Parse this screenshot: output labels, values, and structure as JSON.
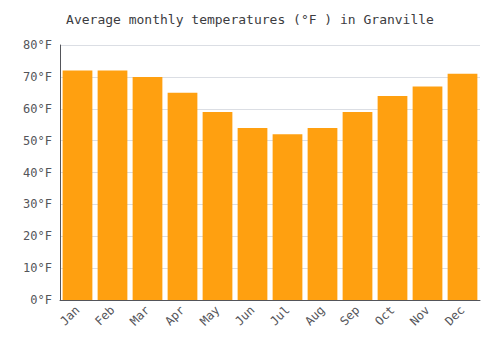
{
  "chart_data": {
    "type": "bar",
    "title": "Average monthly temperatures (°F ) in Granville",
    "categories": [
      "Jan",
      "Feb",
      "Mar",
      "Apr",
      "May",
      "Jun",
      "Jul",
      "Aug",
      "Sep",
      "Oct",
      "Nov",
      "Dec"
    ],
    "values": [
      72,
      72,
      70,
      65,
      59,
      54,
      52,
      54,
      59,
      64,
      67,
      71
    ],
    "color": "#FFA010",
    "ylim": [
      0,
      80
    ],
    "yticks": [
      {
        "value": 0,
        "label": "0°F"
      },
      {
        "value": 10,
        "label": "10°F"
      },
      {
        "value": 20,
        "label": "20°F"
      },
      {
        "value": 30,
        "label": "30°F"
      },
      {
        "value": 40,
        "label": "40°F"
      },
      {
        "value": 50,
        "label": "50°F"
      },
      {
        "value": 60,
        "label": "60°F"
      },
      {
        "value": 70,
        "label": "70°F"
      },
      {
        "value": 80,
        "label": "80°F"
      }
    ],
    "grid": true
  }
}
